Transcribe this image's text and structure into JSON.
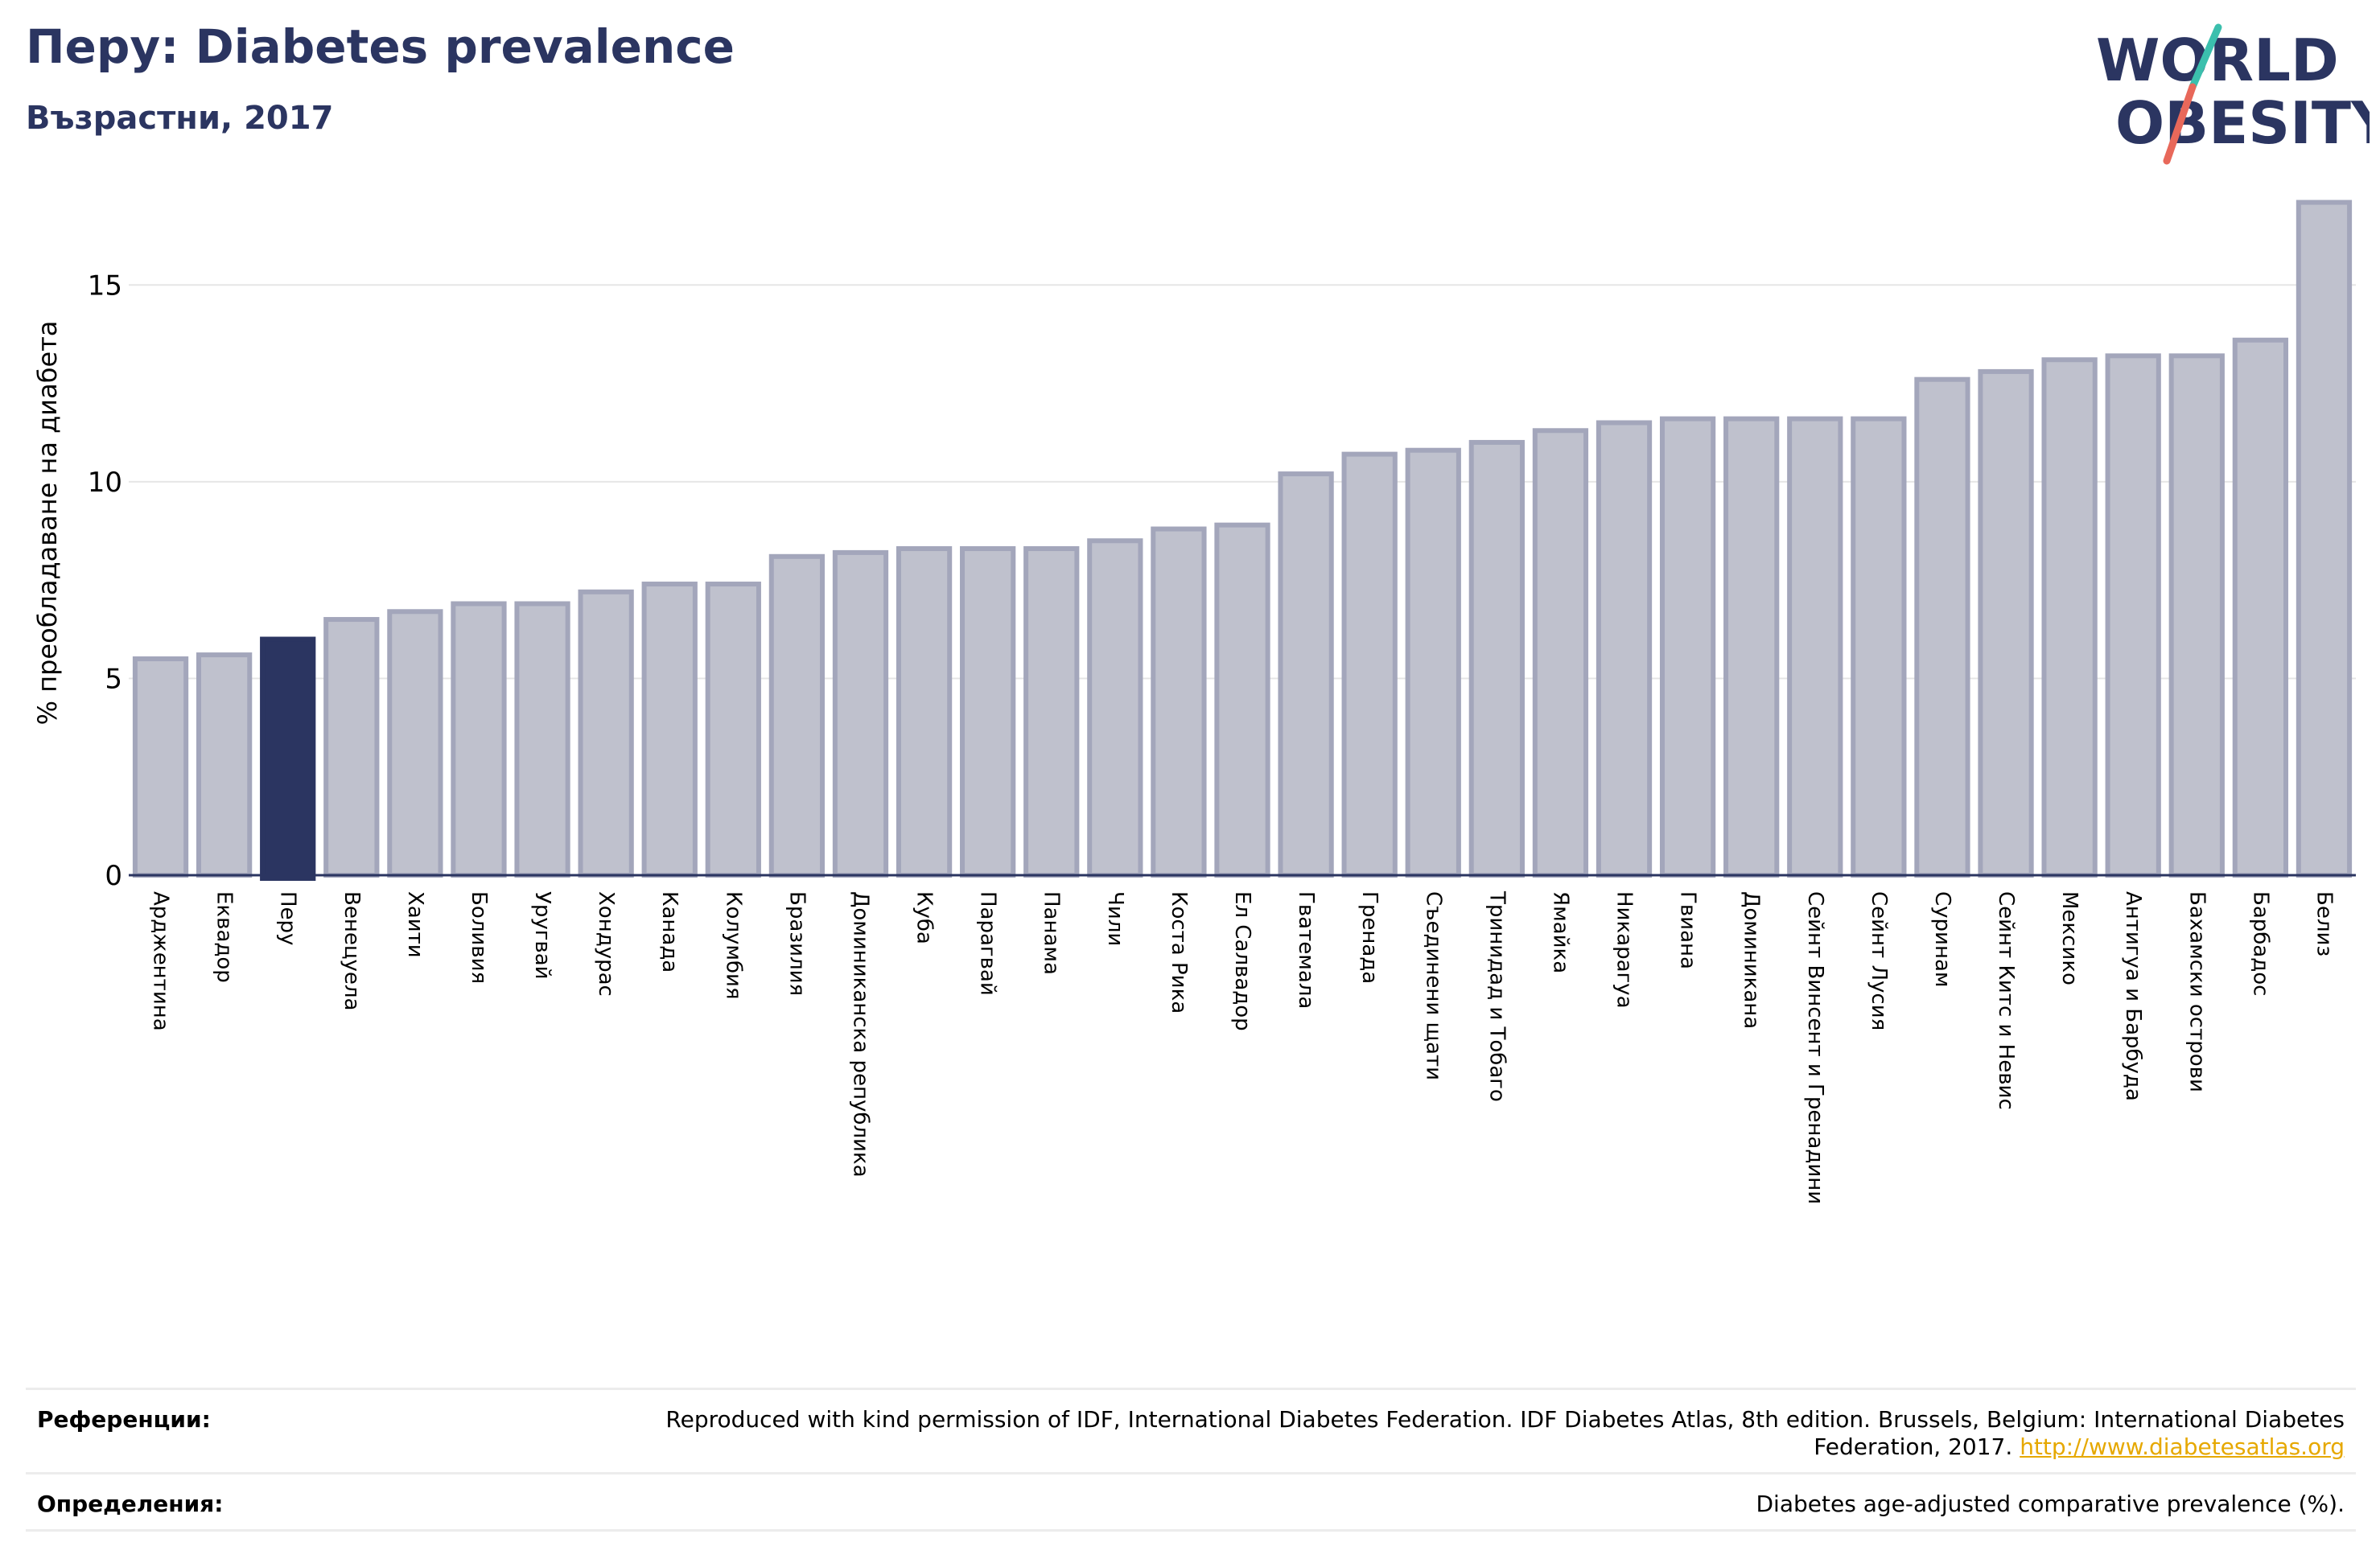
{
  "header": {
    "title": "Перу: Diabetes prevalence",
    "subtitle": "Възрастни, 2017"
  },
  "logo": {
    "line1": "WORLD",
    "line2": "OBESITY",
    "text_color": "#2b3561",
    "slash_color_top": "#3bbfad",
    "slash_color_bottom": "#e8685a"
  },
  "chart_data": {
    "type": "bar",
    "ylabel": "% преобладаване на диабета",
    "ylim": [
      0,
      17.5
    ],
    "yticks": [
      0,
      5,
      10,
      15
    ],
    "grid": true,
    "highlight": "Перу",
    "colors": {
      "bar": "#bfc1cd",
      "bar_edge": "#a3a6bb",
      "highlight": "#2b3561",
      "axis": "#2b3561",
      "grid": "#e6e6e6"
    },
    "categories": [
      "Арджентина",
      "Еквадор",
      "Перу",
      "Венецуела",
      "Хаити",
      "Боливия",
      "Уругвай",
      "Хондурас",
      "Канада",
      "Колумбия",
      "Бразилия",
      "Доминиканска република",
      "Куба",
      "Парагвай",
      "Панама",
      "Чили",
      "Коста Рика",
      "Ел Салвадор",
      "Гватемала",
      "Гренада",
      "Съединени щати",
      "Тринидад и Тобаго",
      "Ямайка",
      "Никарагуа",
      "Гвиана",
      "Доминикана",
      "Сейнт Винсент и Гренадини",
      "Сейнт Лусия",
      "Суринам",
      "Сейнт Китс и Невис",
      "Мексико",
      "Антигуа и Барбуда",
      "Бахамски острови",
      "Барбадос",
      "Белиз"
    ],
    "values": [
      5.5,
      5.6,
      6.0,
      6.5,
      6.7,
      6.9,
      6.9,
      7.2,
      7.4,
      7.4,
      8.1,
      8.2,
      8.3,
      8.3,
      8.3,
      8.5,
      8.8,
      8.9,
      10.2,
      10.7,
      10.8,
      11.0,
      11.3,
      11.5,
      11.6,
      11.6,
      11.6,
      11.6,
      12.6,
      12.8,
      13.1,
      13.2,
      13.2,
      13.6,
      17.1
    ]
  },
  "references": {
    "label": "Референции:",
    "text": "Reproduced with kind permission of IDF, International Diabetes Federation. IDF Diabetes Atlas, 8th edition. Brussels, Belgium: International Diabetes Federation, 2017.",
    "link": "http://www.diabetesatlas.org"
  },
  "definitions": {
    "label": "Определения:",
    "text": "Diabetes age-adjusted comparative prevalence (%)."
  }
}
